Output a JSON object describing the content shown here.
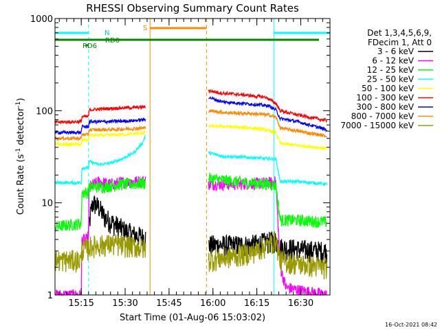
{
  "chart_data": {
    "type": "line",
    "title": "RHESSI Observing Summary Count Rates",
    "xlabel": "Start Time (01-Aug-06 15:03:02)",
    "ylabel_main": "Count Rate (s",
    "ylabel_sup1": "-1",
    "ylabel_mid": " detector",
    "ylabel_sup2": "-1",
    "ylabel_end": ")",
    "yscale": "log",
    "ylim": [
      1,
      1000
    ],
    "xlim_minutes": [
      3.03,
      97.0
    ],
    "x_start_time": "15:03:02",
    "x_ticks": [
      {
        "minute": 12,
        "label": "15:15"
      },
      {
        "minute": 27,
        "label": "15:30"
      },
      {
        "minute": 42,
        "label": "15:45"
      },
      {
        "minute": 57,
        "label": "16:00"
      },
      {
        "minute": 72,
        "label": "16:15"
      },
      {
        "minute": 87,
        "label": "16:30"
      }
    ],
    "y_ticks": [
      {
        "value": 1,
        "label": "1"
      },
      {
        "value": 10,
        "label": "10"
      },
      {
        "value": 100,
        "label": "100"
      },
      {
        "value": 1000,
        "label": "1000"
      }
    ],
    "legend_header": [
      "Det 1,3,4,5,6,9,",
      "FDecim 1, Att 0"
    ],
    "timestamp": "16-Oct-2021 08:42",
    "flag_labels": {
      "night": "N",
      "saa": "S",
      "rd0": "RD0",
      "rd6": "RD6"
    },
    "saa_interval_minutes": [
      35.5,
      54.8
    ],
    "night_interval_minutes": [
      [
        3.03,
        14.5
      ],
      [
        77.8,
        97.0
      ]
    ],
    "series": [
      {
        "name": "3 - 6 keV",
        "color": "#000000",
        "seg1": [
          [
            14.3,
            4.5
          ],
          [
            15.3,
            8
          ],
          [
            16,
            10
          ],
          [
            18,
            9
          ],
          [
            20,
            7
          ],
          [
            23,
            6
          ],
          [
            27,
            5
          ],
          [
            30,
            4.5
          ],
          [
            34,
            4.2
          ]
        ],
        "seg2": [
          [
            55.5,
            3.5
          ],
          [
            70,
            3.5
          ],
          [
            76,
            3.8
          ],
          [
            78.5,
            3.9
          ],
          [
            80,
            3.3
          ],
          [
            88,
            3.1
          ],
          [
            96,
            3.0
          ]
        ]
      },
      {
        "name": "6 - 12 keV",
        "color": "#ff00ff",
        "seg1": [
          [
            3,
            1.0
          ],
          [
            12,
            1.0
          ],
          [
            12.2,
            4
          ],
          [
            14.5,
            4
          ],
          [
            14.7,
            15
          ],
          [
            18,
            17
          ],
          [
            22,
            16
          ],
          [
            27,
            17
          ],
          [
            30,
            17
          ],
          [
            34,
            17.5
          ]
        ],
        "seg2": [
          [
            55.5,
            16
          ],
          [
            65,
            16
          ],
          [
            76,
            16.5
          ],
          [
            78.5,
            17
          ],
          [
            80,
            2
          ],
          [
            82,
            1.2
          ],
          [
            96,
            1.0
          ]
        ]
      },
      {
        "name": "12 - 25 keV",
        "color": "#00ff00",
        "seg1": [
          [
            3,
            5.5
          ],
          [
            12,
            6
          ],
          [
            12.2,
            13
          ],
          [
            14.5,
            13
          ],
          [
            14.7,
            15
          ],
          [
            20,
            15
          ],
          [
            26,
            16
          ],
          [
            30,
            16
          ],
          [
            34,
            16.5
          ]
        ],
        "seg2": [
          [
            55.5,
            18.5
          ],
          [
            65,
            17
          ],
          [
            76,
            16
          ],
          [
            78.5,
            15.5
          ],
          [
            80,
            6.5
          ],
          [
            86,
            6.5
          ],
          [
            96,
            6.2
          ]
        ]
      },
      {
        "name": "25 - 50 keV",
        "color": "#00ffff",
        "seg1": [
          [
            3,
            16.5
          ],
          [
            12,
            16.5
          ],
          [
            12.2,
            24
          ],
          [
            14.5,
            24
          ],
          [
            14.7,
            28
          ],
          [
            18,
            26
          ],
          [
            22,
            27
          ],
          [
            26,
            30
          ],
          [
            30,
            35
          ],
          [
            33,
            45
          ],
          [
            34,
            55
          ]
        ],
        "seg2": [
          [
            55.5,
            35
          ],
          [
            60,
            32
          ],
          [
            70,
            31
          ],
          [
            76,
            30
          ],
          [
            78.5,
            30
          ],
          [
            80,
            17
          ],
          [
            86,
            17
          ],
          [
            96,
            16
          ]
        ]
      },
      {
        "name": "50 - 100 keV",
        "color": "#ffff00",
        "seg1": [
          [
            3,
            43
          ],
          [
            12,
            43
          ],
          [
            12.2,
            48
          ],
          [
            14.5,
            48
          ],
          [
            14.7,
            54
          ],
          [
            20,
            54
          ],
          [
            26,
            55
          ],
          [
            30,
            56
          ],
          [
            34,
            58
          ]
        ],
        "seg2": [
          [
            55.5,
            68
          ],
          [
            62,
            67
          ],
          [
            70,
            65
          ],
          [
            74,
            63
          ],
          [
            78.5,
            58
          ],
          [
            80,
            44
          ],
          [
            86,
            42
          ],
          [
            96,
            39
          ]
        ]
      },
      {
        "name": "100 - 300 keV",
        "color": "#ff0000",
        "seg1": [
          [
            3,
            75
          ],
          [
            12,
            76
          ],
          [
            12.2,
            86
          ],
          [
            14.5,
            86
          ],
          [
            14.7,
            102
          ],
          [
            20,
            105
          ],
          [
            26,
            107
          ],
          [
            30,
            108
          ],
          [
            34,
            110
          ]
        ],
        "seg2": [
          [
            55.5,
            165
          ],
          [
            60,
            155
          ],
          [
            68,
            148
          ],
          [
            72,
            143
          ],
          [
            75,
            140
          ],
          [
            78.5,
            120
          ],
          [
            80,
            100
          ],
          [
            86,
            90
          ],
          [
            96,
            78
          ]
        ]
      },
      {
        "name": "300 - 800 keV",
        "color": "#0000ff",
        "seg1": [
          [
            3,
            58
          ],
          [
            12,
            58
          ],
          [
            12.2,
            67
          ],
          [
            14.5,
            67
          ],
          [
            14.7,
            76
          ],
          [
            20,
            76
          ],
          [
            26,
            77
          ],
          [
            30,
            78
          ],
          [
            34,
            80
          ]
        ],
        "seg2": [
          [
            55.5,
            140
          ],
          [
            60,
            125
          ],
          [
            70,
            118
          ],
          [
            76,
            113
          ],
          [
            78.5,
            102
          ],
          [
            80,
            82
          ],
          [
            86,
            76
          ],
          [
            96,
            62
          ]
        ]
      },
      {
        "name": "800 - 7000 keV",
        "color": "#ff8800",
        "seg1": [
          [
            3,
            50
          ],
          [
            12,
            50
          ],
          [
            12.2,
            55
          ],
          [
            14.5,
            55
          ],
          [
            14.7,
            62
          ],
          [
            20,
            62
          ],
          [
            26,
            63
          ],
          [
            30,
            64
          ],
          [
            34,
            65
          ]
        ],
        "seg2": [
          [
            55.5,
            100
          ],
          [
            62,
            95
          ],
          [
            70,
            93
          ],
          [
            76,
            90
          ],
          [
            78.5,
            85
          ],
          [
            80,
            65
          ],
          [
            86,
            60
          ],
          [
            96,
            53
          ]
        ]
      },
      {
        "name": "7000 - 15000 keV",
        "color": "#999900",
        "seg1": [
          [
            3,
            2.4
          ],
          [
            12,
            2.4
          ],
          [
            12.2,
            3.2
          ],
          [
            14.5,
            3.2
          ],
          [
            14.7,
            3.4
          ],
          [
            22,
            3.6
          ],
          [
            30,
            3.4
          ],
          [
            34,
            3.2
          ]
        ],
        "seg2": [
          [
            55.5,
            2.4
          ],
          [
            62,
            2.6
          ],
          [
            70,
            2.9
          ],
          [
            76,
            3.5
          ],
          [
            78.5,
            4.0
          ],
          [
            80,
            2.4
          ],
          [
            86,
            2.2
          ],
          [
            96,
            2.0
          ]
        ]
      }
    ]
  },
  "colors": {
    "axis": "#000000",
    "night_line": "#00ffff",
    "saa_line": "#ff8800",
    "rd_line": "#008800"
  }
}
